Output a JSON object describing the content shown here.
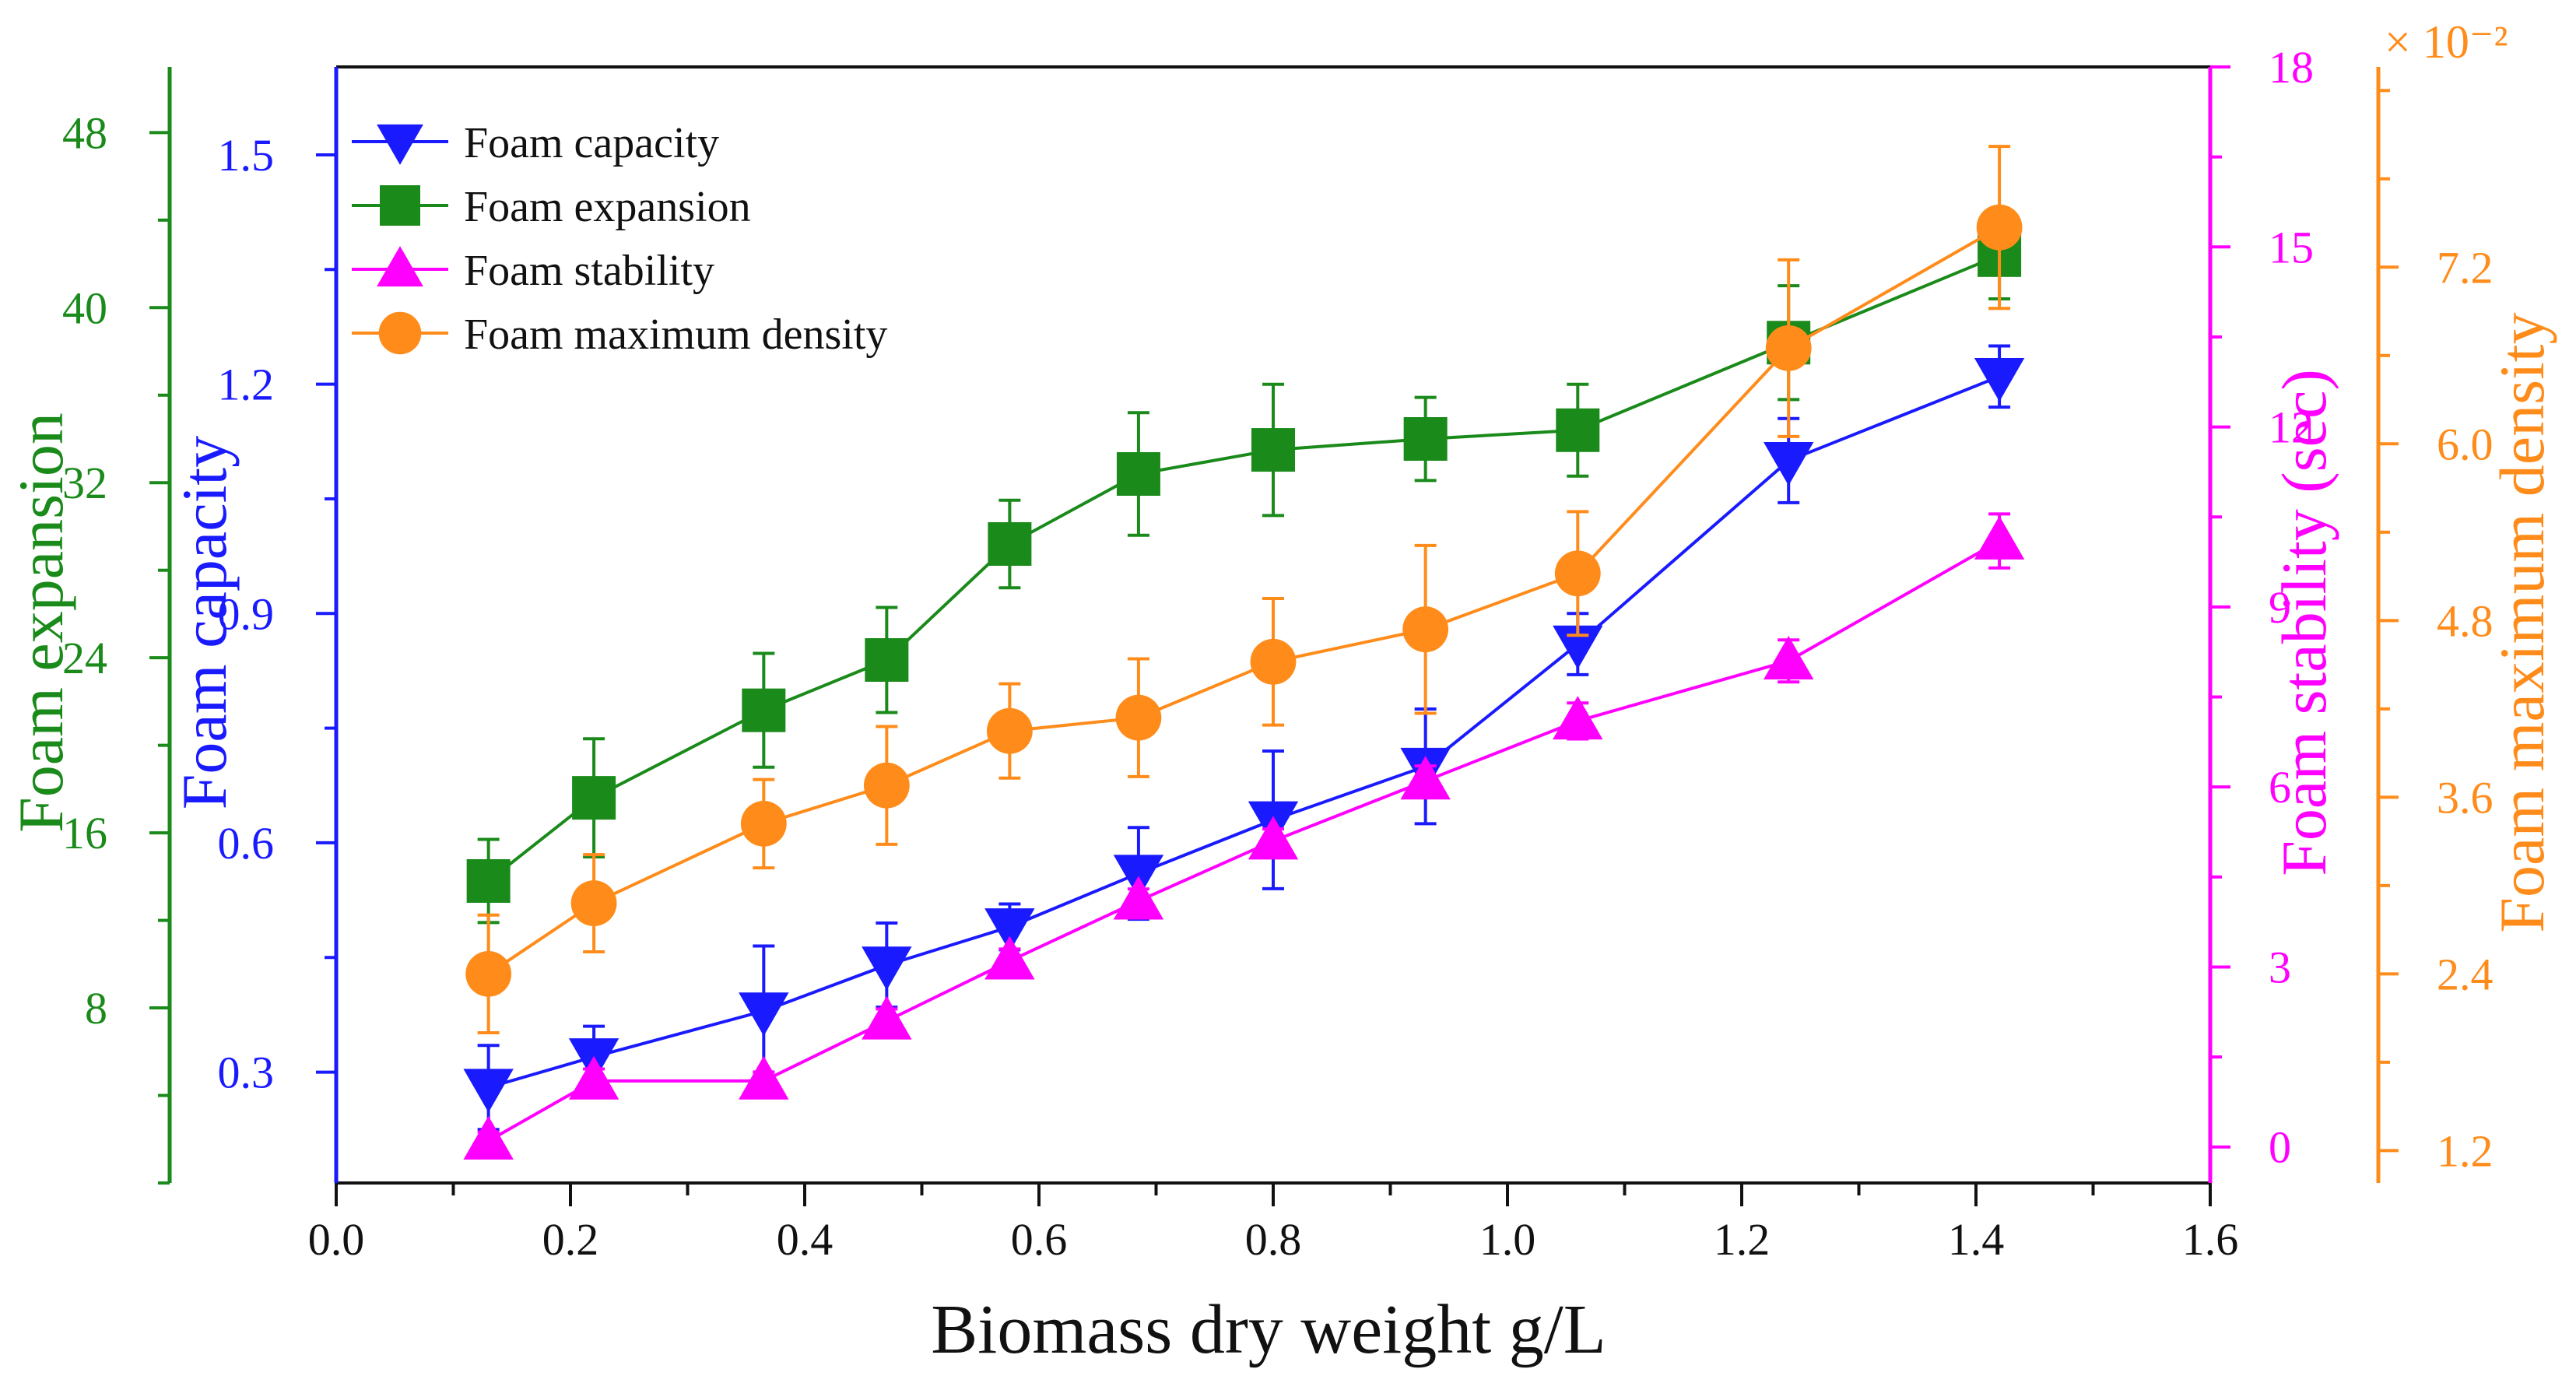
{
  "chart_data": {
    "type": "line",
    "xlabel": "Biomass dry weight g/L",
    "xlim": [
      0.0,
      1.6
    ],
    "xticks": [
      "0.0",
      "0.2",
      "0.4",
      "0.6",
      "0.8",
      "1.0",
      "1.2",
      "1.4",
      "1.6"
    ],
    "x": [
      0.13,
      0.22,
      0.365,
      0.47,
      0.575,
      0.685,
      0.8,
      0.93,
      1.06,
      1.24,
      1.42
    ],
    "legend_position": "top-left",
    "axes": [
      {
        "id": "capacity",
        "label": "Foam capacity",
        "color": "#1a1aff",
        "range": [
          0.155,
          1.615
        ],
        "ticks": [
          "0.3",
          "0.6",
          "0.9",
          "1.2",
          "1.5"
        ]
      },
      {
        "id": "expansion",
        "label": "Foam expansion",
        "color": "#1a8a1a",
        "range": [
          0.0,
          51.0
        ],
        "ticks": [
          "8",
          "16",
          "24",
          "32",
          "40",
          "48"
        ]
      },
      {
        "id": "stability",
        "label": "Foam stability (sec)",
        "color": "#ff00ff",
        "range": [
          -0.6,
          18.0
        ],
        "ticks": [
          "0",
          "3",
          "6",
          "9",
          "12",
          "15",
          "18"
        ]
      },
      {
        "id": "density",
        "label": "Foam maximum density",
        "color": "#ff8c1a",
        "range": [
          0.98,
          8.56
        ],
        "ticks": [
          "1.2",
          "2.4",
          "3.6",
          "4.8",
          "6.0",
          "7.2"
        ],
        "multiplier": "× 10⁻²"
      }
    ],
    "series": [
      {
        "name": "Foam capacity",
        "axis": "capacity",
        "color": "#1a1aff",
        "marker": "triangle-down",
        "values": [
          0.28,
          0.32,
          0.38,
          0.44,
          0.49,
          0.56,
          0.63,
          0.7,
          0.86,
          1.1,
          1.21
        ],
        "errors": [
          0.055,
          0.04,
          0.085,
          0.055,
          0.03,
          0.06,
          0.09,
          0.075,
          0.04,
          0.055,
          0.04
        ]
      },
      {
        "name": "Foam expansion",
        "axis": "expansion",
        "color": "#1a8a1a",
        "marker": "square",
        "values": [
          13.8,
          17.6,
          21.6,
          23.9,
          29.2,
          32.4,
          33.5,
          34.0,
          34.4,
          38.4,
          42.4
        ],
        "errors": [
          1.9,
          2.7,
          2.6,
          2.4,
          2.0,
          2.8,
          3.0,
          1.9,
          2.1,
          2.6,
          2.0
        ]
      },
      {
        "name": "Foam stability",
        "axis": "stability",
        "color": "#ff00ff",
        "marker": "triangle-up",
        "values": [
          0.1,
          1.1,
          1.1,
          2.1,
          3.1,
          4.1,
          5.1,
          6.1,
          7.1,
          8.1,
          10.1
        ],
        "errors": [
          0.15,
          0.2,
          0.15,
          0.2,
          0.2,
          0.2,
          0.2,
          0.25,
          0.3,
          0.35,
          0.45
        ]
      },
      {
        "name": "Foam maximum density",
        "axis": "density",
        "color": "#ff8c1a",
        "marker": "circle",
        "values": [
          2.4,
          2.88,
          3.42,
          3.68,
          4.05,
          4.14,
          4.52,
          4.74,
          5.12,
          6.65,
          7.47
        ],
        "errors": [
          0.4,
          0.33,
          0.3,
          0.4,
          0.32,
          0.4,
          0.43,
          0.57,
          0.42,
          0.6,
          0.55
        ]
      }
    ]
  }
}
